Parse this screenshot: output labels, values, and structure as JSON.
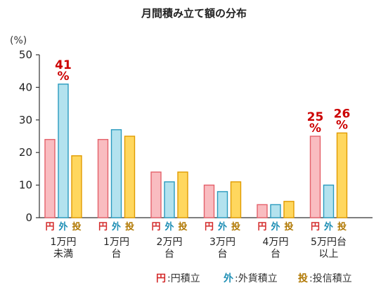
{
  "chart_data": {
    "type": "bar",
    "title": "月間積み立て額の分布",
    "unit_label": "(%)",
    "ylim": [
      0,
      50
    ],
    "yticks": [
      0,
      10,
      20,
      30,
      40,
      50
    ],
    "grid": false,
    "categories": [
      [
        "1万円",
        "未満"
      ],
      [
        "1万円",
        "台"
      ],
      [
        "2万円",
        "台"
      ],
      [
        "3万円",
        "台"
      ],
      [
        "4万円",
        "台"
      ],
      [
        "5万円台",
        "以上"
      ]
    ],
    "series": [
      {
        "key": "円",
        "name": "円積立",
        "values": [
          24,
          24,
          14,
          10,
          4,
          25
        ],
        "fill": "#f9bcc0",
        "stroke": "#e4606a",
        "key_color": "#d42c2c"
      },
      {
        "key": "外",
        "name": "外貨積立",
        "values": [
          41,
          27,
          11,
          8,
          4,
          10
        ],
        "fill": "#b3e2ee",
        "stroke": "#2a9bbf",
        "key_color": "#1f8fb5"
      },
      {
        "key": "投",
        "name": "投信積立",
        "values": [
          19,
          25,
          14,
          11,
          5,
          26
        ],
        "fill": "#ffd75e",
        "stroke": "#e09b00",
        "key_color": "#b07700"
      }
    ],
    "annotations": [
      {
        "category_index": 0,
        "series_index": 1,
        "value": "41",
        "suffix": "%"
      },
      {
        "category_index": 5,
        "series_index": 0,
        "value": "25",
        "suffix": "%"
      },
      {
        "category_index": 5,
        "series_index": 2,
        "value": "26",
        "suffix": "%"
      }
    ],
    "legend_position": "bottom-right"
  }
}
